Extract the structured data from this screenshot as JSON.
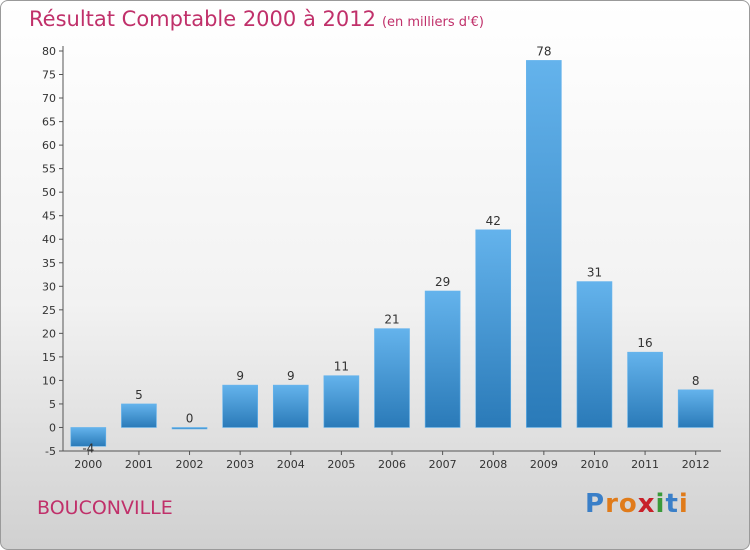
{
  "title": {
    "main": "Résultat Comptable 2000 à 2012",
    "unit": "(en milliers d'€)"
  },
  "commune": "BOUCONVILLE",
  "logo": {
    "letters": [
      "P",
      "r",
      "o",
      "x",
      "i",
      "t",
      "i"
    ],
    "colors": [
      "#3a7fc8",
      "#e07b1a",
      "#e07b1a",
      "#c8202a",
      "#3a9a3a",
      "#3a7fc8",
      "#e07b1a"
    ]
  },
  "colors": {
    "bar_light": "#64b3ec",
    "bar_dark": "#2a7ab8",
    "axis": "#555555"
  },
  "chart_data": {
    "type": "bar",
    "title": "Résultat Comptable 2000 à 2012 (en milliers d'€)",
    "categories": [
      "2000",
      "2001",
      "2002",
      "2003",
      "2004",
      "2005",
      "2006",
      "2007",
      "2008",
      "2009",
      "2010",
      "2011",
      "2012"
    ],
    "values": [
      -4,
      5,
      0,
      9,
      9,
      11,
      21,
      29,
      42,
      78,
      31,
      16,
      8
    ],
    "labels": [
      "-4",
      "5",
      "0",
      "9",
      "9",
      "11",
      "21",
      "29",
      "42",
      "78",
      "31",
      "16",
      "8"
    ],
    "ylim": [
      -5,
      80
    ],
    "yticks": [
      -5,
      0,
      5,
      10,
      15,
      20,
      25,
      30,
      35,
      40,
      45,
      50,
      55,
      60,
      65,
      70,
      75,
      80
    ],
    "grid": false,
    "legend": "none"
  }
}
